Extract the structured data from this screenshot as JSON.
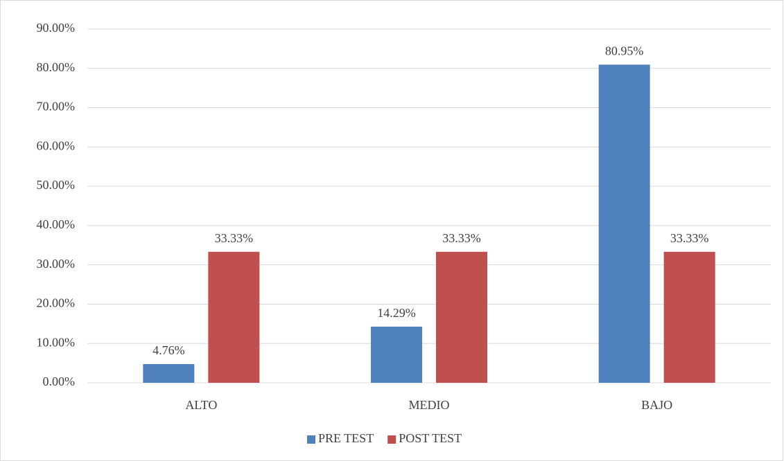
{
  "chart_data": {
    "type": "bar",
    "categories": [
      "ALTO",
      "MEDIO",
      "BAJO"
    ],
    "series": [
      {
        "name": "PRE TEST",
        "color": "#4f81bd",
        "values": [
          4.76,
          14.29,
          80.95
        ],
        "value_labels": [
          "4.76%",
          "14.29%",
          "80.95%"
        ]
      },
      {
        "name": "POST TEST",
        "color": "#c0504d",
        "values": [
          33.33,
          33.33,
          33.33
        ],
        "value_labels": [
          "33.33%",
          "33.33%",
          "33.33%"
        ]
      }
    ],
    "ylim": [
      0,
      90
    ],
    "yticks": [
      {
        "value": 0,
        "label": "0.00%"
      },
      {
        "value": 10,
        "label": "10.00%"
      },
      {
        "value": 20,
        "label": "20.00%"
      },
      {
        "value": 30,
        "label": "30.00%"
      },
      {
        "value": 40,
        "label": "40.00%"
      },
      {
        "value": 50,
        "label": "50.00%"
      },
      {
        "value": 60,
        "label": "60.00%"
      },
      {
        "value": 70,
        "label": "70.00%"
      },
      {
        "value": 80,
        "label": "80.00%"
      },
      {
        "value": 90,
        "label": "90.00%"
      }
    ],
    "grid": true,
    "legend": "bottom"
  }
}
